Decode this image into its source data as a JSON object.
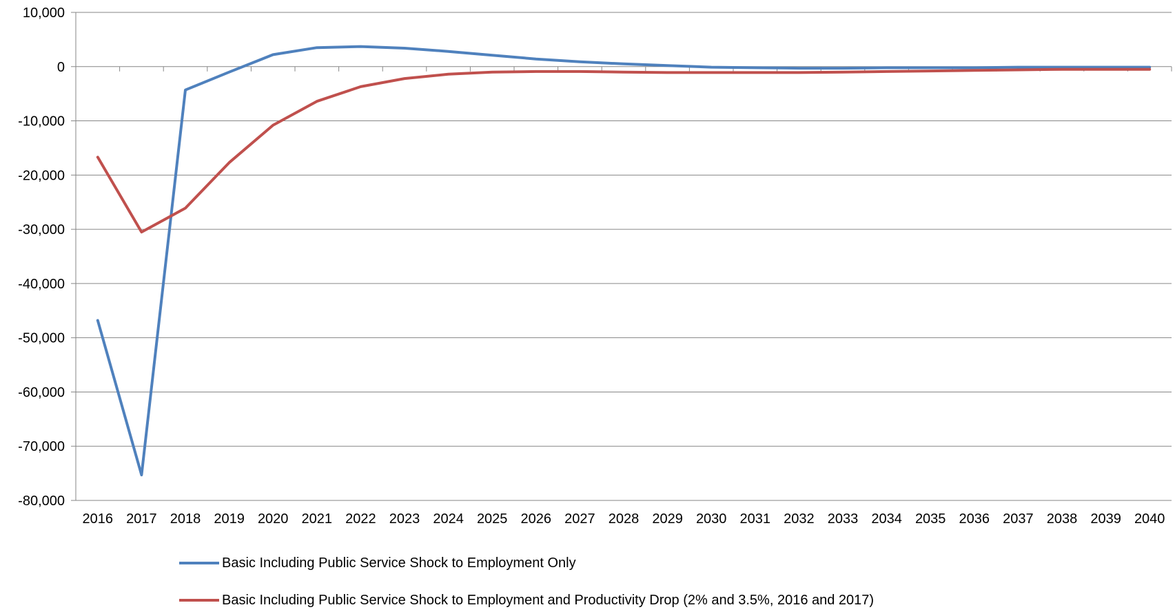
{
  "chart_data": {
    "type": "line",
    "title": "",
    "xlabel": "",
    "ylabel": "",
    "categories": [
      "2016",
      "2017",
      "2018",
      "2019",
      "2020",
      "2021",
      "2022",
      "2023",
      "2024",
      "2025",
      "2026",
      "2027",
      "2028",
      "2029",
      "2030",
      "2031",
      "2032",
      "2033",
      "2034",
      "2035",
      "2036",
      "2037",
      "2038",
      "2039",
      "2040"
    ],
    "ylim": [
      -80000,
      10000
    ],
    "yticks": [
      10000,
      0,
      -10000,
      -20000,
      -30000,
      -40000,
      -50000,
      -60000,
      -70000,
      -80000
    ],
    "ytick_labels": [
      "10,000",
      "0",
      "-10,000",
      "-20,000",
      "-30,000",
      "-40,000",
      "-50,000",
      "-60,000",
      "-70,000",
      "-80,000"
    ],
    "grid": true,
    "legend_position": "bottom",
    "series": [
      {
        "name": "Basic Including Public Service Shock  to Employment Only",
        "color": "#4F81BD",
        "values": [
          -46800,
          -75300,
          -4300,
          -1000,
          2200,
          3500,
          3700,
          3400,
          2800,
          2100,
          1400,
          900,
          500,
          200,
          -100,
          -200,
          -300,
          -300,
          -200,
          -200,
          -200,
          -100,
          -100,
          -100,
          -100
        ]
      },
      {
        "name": "Basic Including Public Service Shock  to Employment and Productivity Drop (2% and 3.5%, 2016 and 2017)",
        "color": "#C0504D",
        "values": [
          -16700,
          -30500,
          -26100,
          -17700,
          -10800,
          -6400,
          -3700,
          -2200,
          -1400,
          -1000,
          -900,
          -900,
          -1000,
          -1100,
          -1100,
          -1100,
          -1100,
          -1000,
          -900,
          -800,
          -700,
          -600,
          -500,
          -500,
          -500
        ]
      }
    ]
  }
}
